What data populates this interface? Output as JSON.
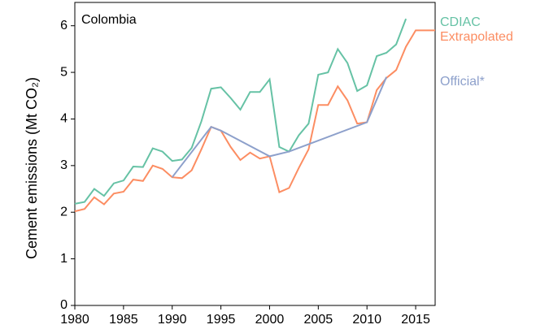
{
  "chart_data": {
    "type": "line",
    "annotation": "Colombia",
    "y_label": "Cement emissions (Mt CO₂)",
    "xlim": [
      1980,
      2017
    ],
    "ylim": [
      0,
      6.5
    ],
    "xticks": [
      1980,
      1985,
      1990,
      1995,
      2000,
      2005,
      2010,
      2015
    ],
    "yticks": [
      0,
      1,
      2,
      3,
      4,
      5,
      6
    ],
    "series": [
      {
        "name": "CDIAC",
        "color": "#66c2a5",
        "x": [
          1980,
          1981,
          1982,
          1983,
          1984,
          1985,
          1986,
          1987,
          1988,
          1989,
          1990,
          1991,
          1992,
          1993,
          1994,
          1995,
          1996,
          1997,
          1998,
          1999,
          2000,
          2001,
          2002,
          2003,
          2004,
          2005,
          2006,
          2007,
          2008,
          2009,
          2010,
          2011,
          2012,
          2013,
          2014
        ],
        "values": [
          2.18,
          2.22,
          2.5,
          2.35,
          2.62,
          2.68,
          2.98,
          2.97,
          3.37,
          3.3,
          3.1,
          3.13,
          3.38,
          3.95,
          4.65,
          4.68,
          4.45,
          4.2,
          4.58,
          4.58,
          4.85,
          3.4,
          3.3,
          3.65,
          3.9,
          4.95,
          5.0,
          5.5,
          5.2,
          4.6,
          4.72,
          5.35,
          5.42,
          5.6,
          6.15
        ]
      },
      {
        "name": "Extrapolated",
        "color": "#fc8d62",
        "x": [
          1980,
          1981,
          1982,
          1983,
          1984,
          1985,
          1986,
          1987,
          1988,
          1989,
          1990,
          1991,
          1992,
          1993,
          1994,
          1995,
          1996,
          1997,
          1998,
          1999,
          2000,
          2001,
          2002,
          2003,
          2004,
          2005,
          2006,
          2007,
          2008,
          2009,
          2010,
          2011,
          2012,
          2013,
          2014,
          2015,
          2016,
          2017
        ],
        "values": [
          2.02,
          2.07,
          2.32,
          2.17,
          2.4,
          2.44,
          2.7,
          2.67,
          3.0,
          2.93,
          2.75,
          2.73,
          2.9,
          3.35,
          3.83,
          3.75,
          3.4,
          3.12,
          3.28,
          3.15,
          3.2,
          2.43,
          2.52,
          2.95,
          3.35,
          4.3,
          4.3,
          4.7,
          4.4,
          3.9,
          3.93,
          4.62,
          4.88,
          5.05,
          5.55,
          5.9,
          5.9,
          5.9
        ]
      },
      {
        "name": "Official*",
        "color": "#8da0cb",
        "x": [
          1990,
          1994,
          1995,
          2000,
          2002,
          2010,
          2012
        ],
        "values": [
          2.75,
          3.83,
          3.75,
          3.2,
          3.3,
          3.93,
          4.9
        ]
      }
    ]
  }
}
